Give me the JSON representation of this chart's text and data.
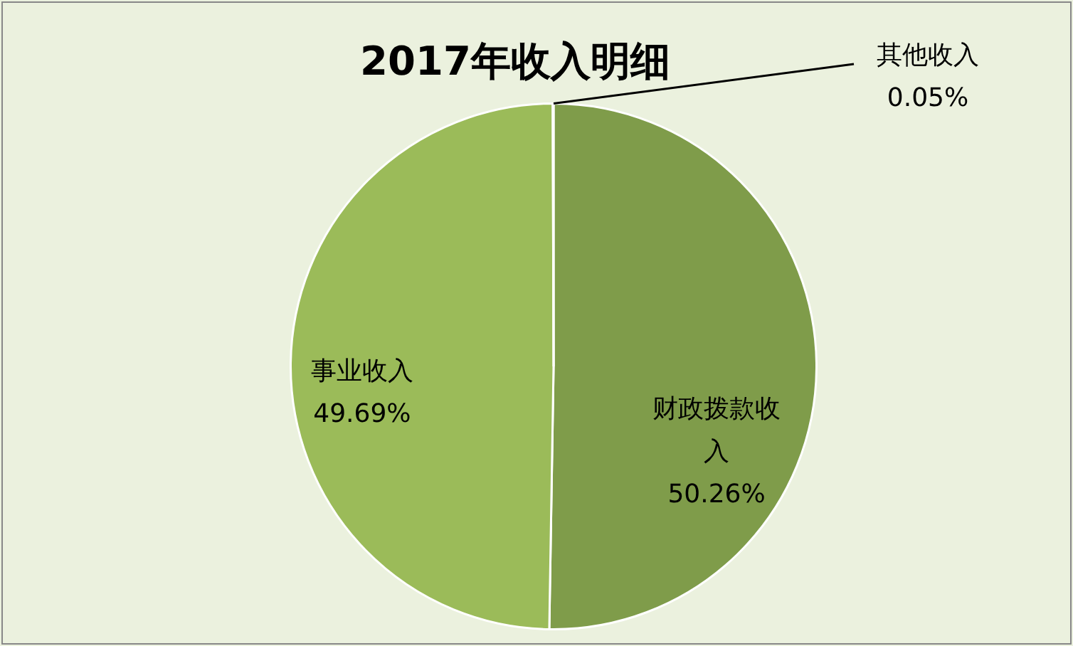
{
  "chart_data": {
    "type": "pie",
    "title": "2017年收入明细",
    "categories": [
      "财政拨款收入",
      "事业收入",
      "其他收入"
    ],
    "values": [
      50.26,
      49.69,
      0.05
    ],
    "colors": [
      "#7f9c4a",
      "#9bbb59",
      "#c3d69b"
    ],
    "value_labels": [
      "50.26%",
      "49.69%",
      "0.05%"
    ],
    "legend": false
  }
}
